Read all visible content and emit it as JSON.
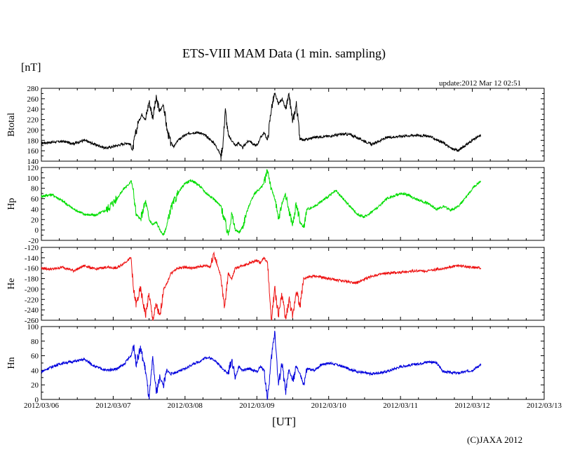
{
  "chart_data": {
    "type": "line",
    "title": "ETS-VIII MAM Data (1 min. sampling)",
    "unit_label": "[nT]",
    "update_text": "update:2012 Mar 12 02:51",
    "xlabel": "[UT]",
    "credit": "(C)JAXA 2012",
    "x_ticks": [
      "2012/03/06",
      "2012/03/07",
      "2012/03/08",
      "2012/03/09",
      "2012/03/10",
      "2012/03/11",
      "2012/03/12",
      "2012/03/13"
    ],
    "x_range_days": [
      0,
      7
    ],
    "data_end_day": 6.12,
    "panels": [
      {
        "name": "Btotal",
        "label": "Btotal",
        "color": "#000000",
        "ylim": [
          140,
          280
        ],
        "yticks": [
          140,
          160,
          180,
          200,
          220,
          240,
          260,
          280
        ],
        "x": [
          0,
          0.3,
          0.45,
          0.6,
          0.75,
          0.9,
          1.05,
          1.2,
          1.24,
          1.27,
          1.3,
          1.35,
          1.4,
          1.45,
          1.5,
          1.55,
          1.6,
          1.65,
          1.7,
          1.75,
          1.8,
          1.85,
          1.9,
          1.95,
          2.0,
          2.1,
          2.2,
          2.3,
          2.4,
          2.45,
          2.5,
          2.53,
          2.56,
          2.6,
          2.65,
          2.7,
          2.75,
          2.8,
          2.85,
          2.9,
          2.95,
          3.0,
          3.05,
          3.1,
          3.15,
          3.2,
          3.25,
          3.3,
          3.35,
          3.4,
          3.45,
          3.5,
          3.55,
          3.6,
          3.65,
          3.7,
          3.8,
          4.0,
          4.2,
          4.3,
          4.4,
          4.6,
          4.8,
          5.0,
          5.2,
          5.4,
          5.6,
          5.7,
          5.8,
          5.9,
          6.0,
          6.12
        ],
        "values": [
          175,
          178,
          174,
          180,
          172,
          165,
          170,
          175,
          172,
          160,
          185,
          215,
          230,
          220,
          255,
          225,
          260,
          235,
          250,
          200,
          175,
          168,
          180,
          185,
          190,
          195,
          195,
          188,
          175,
          165,
          150,
          175,
          240,
          190,
          180,
          170,
          175,
          165,
          175,
          180,
          172,
          170,
          185,
          195,
          180,
          240,
          270,
          250,
          260,
          240,
          265,
          215,
          250,
          185,
          180,
          182,
          186,
          188,
          192,
          191,
          185,
          172,
          185,
          188,
          190,
          188,
          175,
          165,
          160,
          170,
          180,
          190
        ]
      },
      {
        "name": "Hp",
        "label": "Hp",
        "color": "#00dd00",
        "ylim": [
          -20,
          120
        ],
        "yticks": [
          -20,
          0,
          20,
          40,
          60,
          80,
          100,
          120
        ],
        "x": [
          0,
          0.15,
          0.3,
          0.45,
          0.6,
          0.75,
          0.9,
          1.05,
          1.15,
          1.2,
          1.25,
          1.28,
          1.32,
          1.38,
          1.45,
          1.5,
          1.55,
          1.6,
          1.65,
          1.7,
          1.75,
          1.8,
          1.9,
          2.0,
          2.1,
          2.2,
          2.3,
          2.4,
          2.5,
          2.55,
          2.6,
          2.65,
          2.7,
          2.75,
          2.8,
          2.85,
          2.9,
          2.95,
          3.0,
          3.05,
          3.1,
          3.15,
          3.2,
          3.25,
          3.3,
          3.35,
          3.4,
          3.45,
          3.5,
          3.55,
          3.6,
          3.65,
          3.7,
          3.8,
          3.9,
          4.0,
          4.1,
          4.2,
          4.3,
          4.4,
          4.5,
          4.6,
          4.7,
          4.8,
          4.9,
          5.0,
          5.1,
          5.2,
          5.3,
          5.4,
          5.5,
          5.6,
          5.7,
          5.8,
          5.9,
          6.0,
          6.12
        ],
        "values": [
          65,
          68,
          55,
          40,
          30,
          28,
          38,
          60,
          80,
          85,
          95,
          75,
          30,
          20,
          55,
          20,
          10,
          15,
          0,
          -10,
          10,
          40,
          70,
          90,
          95,
          85,
          70,
          60,
          45,
          20,
          -10,
          30,
          0,
          -5,
          5,
          30,
          50,
          65,
          75,
          80,
          90,
          115,
          80,
          60,
          20,
          50,
          70,
          35,
          10,
          50,
          15,
          5,
          40,
          45,
          55,
          65,
          75,
          60,
          45,
          30,
          25,
          35,
          45,
          60,
          65,
          70,
          68,
          60,
          55,
          50,
          40,
          45,
          38,
          45,
          60,
          80,
          95
        ]
      },
      {
        "name": "He",
        "label": "He",
        "color": "#ee1111",
        "ylim": [
          -260,
          -120
        ],
        "yticks": [
          -260,
          -240,
          -220,
          -200,
          -180,
          -160,
          -140,
          -120
        ],
        "x": [
          0,
          0.15,
          0.3,
          0.45,
          0.6,
          0.75,
          0.9,
          1.05,
          1.15,
          1.2,
          1.25,
          1.28,
          1.32,
          1.38,
          1.45,
          1.5,
          1.55,
          1.6,
          1.65,
          1.7,
          1.75,
          1.8,
          1.9,
          2.0,
          2.1,
          2.2,
          2.3,
          2.35,
          2.4,
          2.45,
          2.5,
          2.55,
          2.6,
          2.65,
          2.7,
          2.8,
          2.9,
          3.0,
          3.05,
          3.1,
          3.15,
          3.2,
          3.25,
          3.3,
          3.35,
          3.4,
          3.45,
          3.5,
          3.55,
          3.6,
          3.65,
          3.7,
          3.8,
          4.0,
          4.2,
          4.4,
          4.6,
          4.8,
          5.0,
          5.2,
          5.4,
          5.6,
          5.8,
          6.0,
          6.12
        ],
        "values": [
          -160,
          -162,
          -158,
          -165,
          -155,
          -162,
          -158,
          -160,
          -150,
          -145,
          -140,
          -200,
          -230,
          -200,
          -250,
          -210,
          -260,
          -230,
          -255,
          -200,
          -190,
          -170,
          -160,
          -158,
          -160,
          -157,
          -155,
          -158,
          -130,
          -155,
          -175,
          -240,
          -170,
          -180,
          -160,
          -155,
          -150,
          -145,
          -150,
          -140,
          -150,
          -260,
          -200,
          -250,
          -210,
          -260,
          -220,
          -255,
          -200,
          -235,
          -180,
          -178,
          -175,
          -180,
          -185,
          -188,
          -175,
          -170,
          -168,
          -165,
          -165,
          -160,
          -155,
          -158,
          -160
        ]
      },
      {
        "name": "Hn",
        "label": "Hn",
        "color": "#0000dd",
        "ylim": [
          0,
          100
        ],
        "yticks": [
          0,
          20,
          40,
          60,
          80,
          100
        ],
        "x": [
          0,
          0.15,
          0.3,
          0.45,
          0.6,
          0.75,
          0.9,
          1.05,
          1.15,
          1.2,
          1.25,
          1.28,
          1.32,
          1.38,
          1.45,
          1.5,
          1.55,
          1.6,
          1.65,
          1.7,
          1.75,
          1.8,
          1.9,
          2.0,
          2.1,
          2.2,
          2.3,
          2.4,
          2.5,
          2.55,
          2.6,
          2.65,
          2.7,
          2.75,
          2.8,
          2.9,
          3.0,
          3.05,
          3.1,
          3.15,
          3.2,
          3.25,
          3.3,
          3.35,
          3.4,
          3.45,
          3.5,
          3.55,
          3.6,
          3.65,
          3.7,
          3.8,
          3.9,
          4.0,
          4.1,
          4.2,
          4.4,
          4.6,
          4.8,
          5.0,
          5.2,
          5.4,
          5.5,
          5.6,
          5.8,
          6.0,
          6.12
        ],
        "values": [
          38,
          45,
          50,
          52,
          55,
          45,
          40,
          42,
          48,
          55,
          60,
          75,
          50,
          70,
          40,
          0,
          55,
          10,
          30,
          20,
          40,
          35,
          38,
          42,
          48,
          52,
          58,
          55,
          45,
          40,
          35,
          55,
          30,
          45,
          40,
          42,
          38,
          45,
          40,
          0,
          55,
          95,
          20,
          50,
          10,
          40,
          25,
          45,
          35,
          20,
          42,
          40,
          48,
          50,
          48,
          45,
          38,
          35,
          38,
          45,
          48,
          52,
          50,
          38,
          36,
          40,
          48
        ]
      }
    ]
  }
}
